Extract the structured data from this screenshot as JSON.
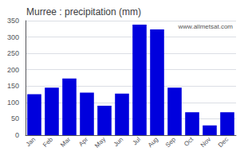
{
  "chart_data": {
    "type": "bar",
    "title": "Murree : precipitation (mm)",
    "categories": [
      "Jan",
      "Feb",
      "Mar",
      "Apr",
      "May",
      "Jun",
      "Jul",
      "Aug",
      "Sep",
      "Oct",
      "Nov",
      "Dec"
    ],
    "values": [
      125,
      145,
      173,
      130,
      90,
      127,
      338,
      323,
      145,
      70,
      30,
      70
    ],
    "color": "#0000dd",
    "ylim": [
      0,
      350
    ],
    "yticks": [
      0,
      50,
      100,
      150,
      200,
      250,
      300,
      350
    ],
    "grid": true,
    "annotations": [
      "www.allmetsat.com"
    ]
  }
}
